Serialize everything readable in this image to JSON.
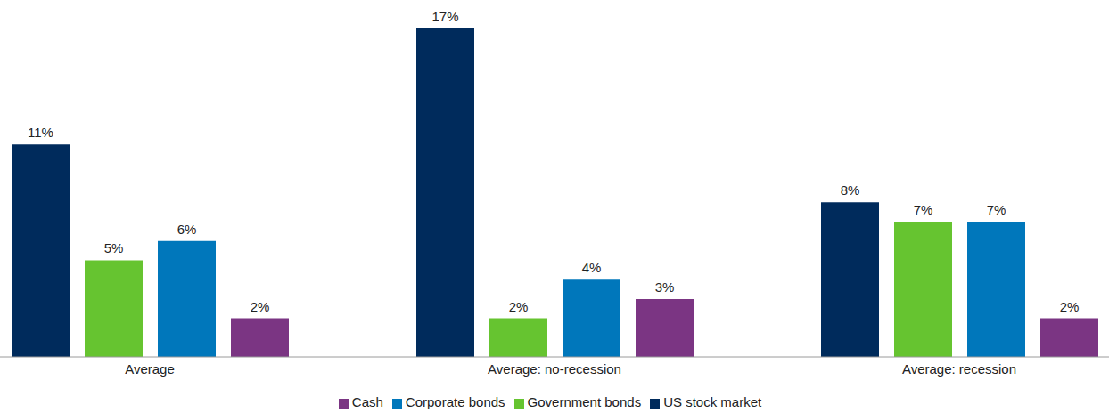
{
  "chart_data": {
    "type": "bar",
    "categories": [
      "Average",
      "Average: no-recession",
      "Average: recession"
    ],
    "series": [
      {
        "name": "US stock market",
        "color": "#002b5c",
        "values": [
          11,
          17,
          8
        ],
        "value_labels": [
          "11%",
          "17%",
          "8%"
        ]
      },
      {
        "name": "Government bonds",
        "color": "#66c430",
        "values": [
          5,
          2,
          7
        ],
        "value_labels": [
          "5%",
          "2%",
          "7%"
        ]
      },
      {
        "name": "Corporate bonds",
        "color": "#0077bb",
        "values": [
          6,
          4,
          7
        ],
        "value_labels": [
          "6%",
          "4%",
          "7%"
        ]
      },
      {
        "name": "Cash",
        "color": "#7b3583",
        "values": [
          2,
          3,
          2
        ],
        "value_labels": [
          "2%",
          "3%",
          "2%"
        ]
      }
    ],
    "ylim": [
      0,
      17
    ],
    "tick_labels": "x",
    "data_labels": true,
    "grid": false,
    "legend": "bottom"
  }
}
